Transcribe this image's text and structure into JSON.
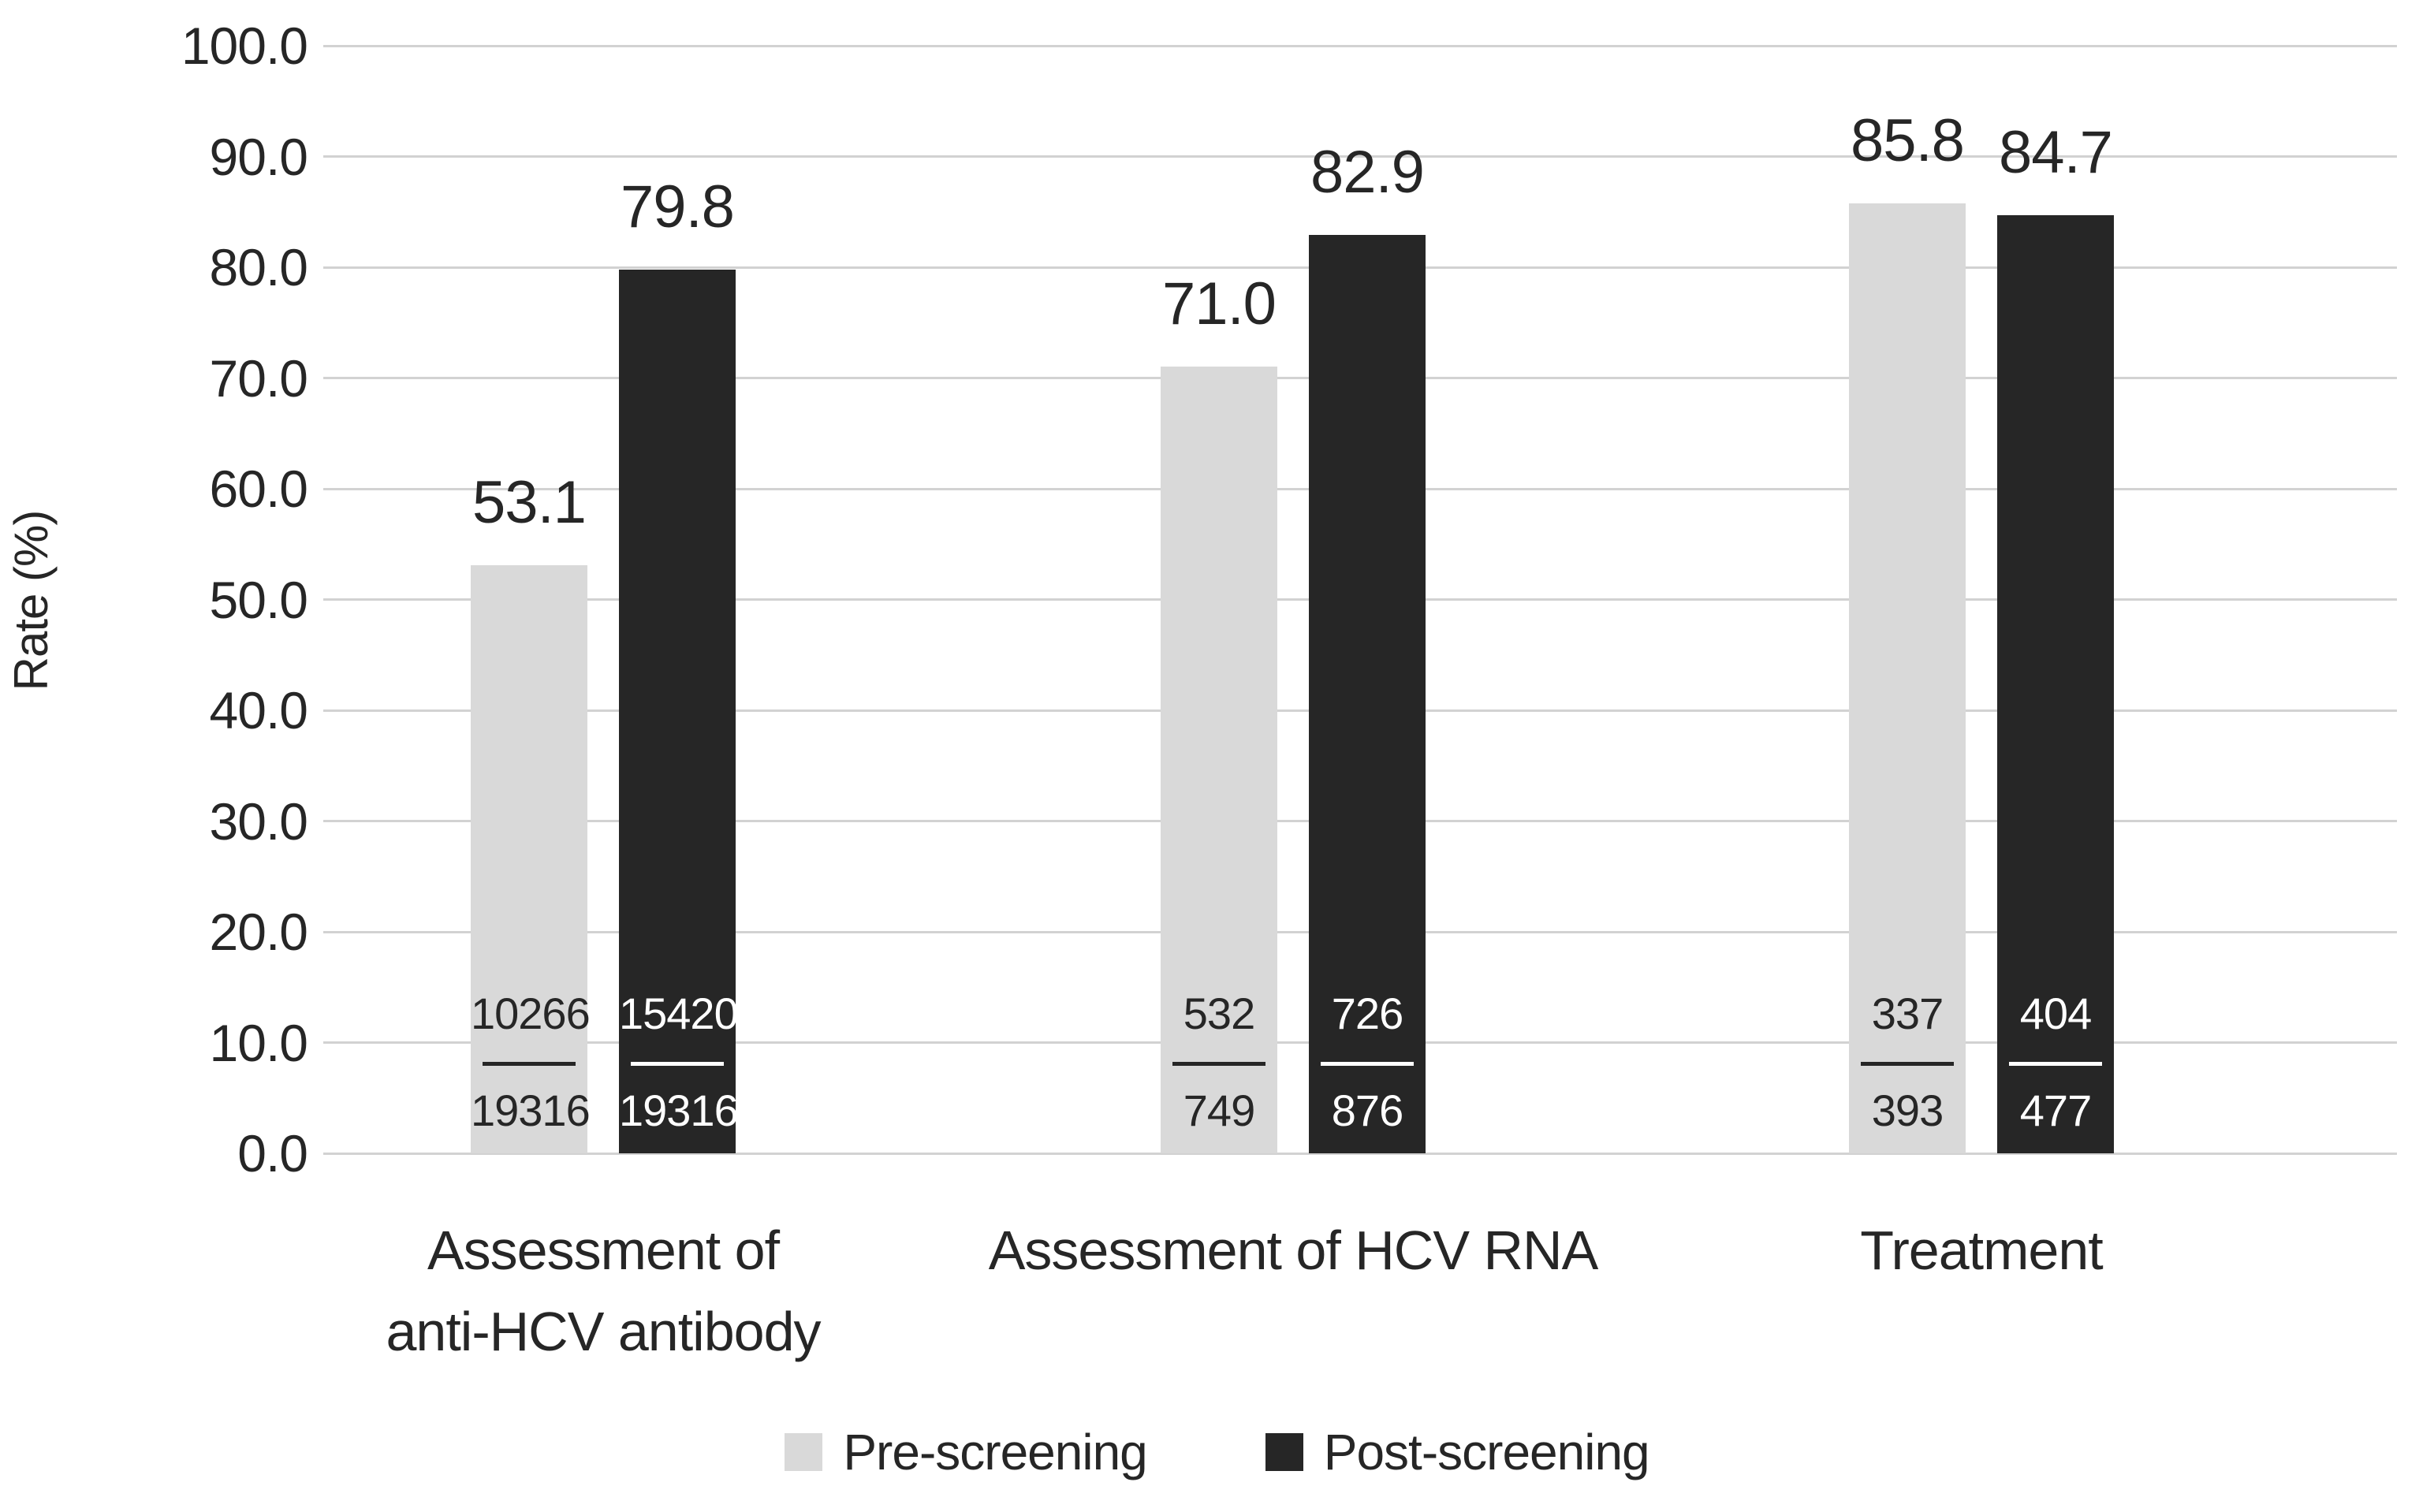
{
  "chart_data": {
    "type": "bar",
    "title": "",
    "ylabel": "Rate (%)",
    "xlabel": "",
    "ylim": [
      0,
      100
    ],
    "grid": true,
    "legend_position": "bottom",
    "ytick_labels": [
      "0.0",
      "10.0",
      "20.0",
      "30.0",
      "40.0",
      "50.0",
      "60.0",
      "70.0",
      "80.0",
      "90.0",
      "100.0"
    ],
    "categories": [
      "Assessment of anti-HCV antibody",
      "Assessment of HCV RNA",
      "Treatment"
    ],
    "category_label_lines": [
      [
        "Assessment of",
        "anti-HCV antibody"
      ],
      [
        "Assessment of HCV RNA"
      ],
      [
        "Treatment"
      ]
    ],
    "series": [
      {
        "name": "Pre-screening",
        "color": "#d9d9d9",
        "label_color": "#262626",
        "values": [
          53.1,
          71.0,
          85.8
        ],
        "value_labels": [
          "53.1",
          "71.0",
          "85.8"
        ],
        "fractions": [
          {
            "numerator": "10266",
            "denominator": "19316"
          },
          {
            "numerator": "532",
            "denominator": "749"
          },
          {
            "numerator": "337",
            "denominator": "393"
          }
        ]
      },
      {
        "name": "Post-screening",
        "color": "#262626",
        "label_color": "#ffffff",
        "values": [
          79.8,
          82.9,
          84.7
        ],
        "value_labels": [
          "79.8",
          "82.9",
          "84.7"
        ],
        "fractions": [
          {
            "numerator": "15420",
            "denominator": "19316"
          },
          {
            "numerator": "726",
            "denominator": "876"
          },
          {
            "numerator": "404",
            "denominator": "477"
          }
        ]
      }
    ],
    "colors": {
      "background": "#ffffff",
      "gridline": "#d2d2d2",
      "text": "#262626"
    }
  }
}
